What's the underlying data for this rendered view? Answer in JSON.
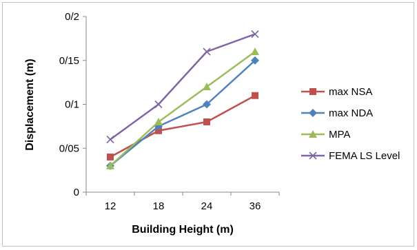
{
  "chart_data": {
    "type": "line",
    "title": "",
    "xlabel": "Building Height (m)",
    "ylabel": "Displacement (m)",
    "categories": [
      "12",
      "18",
      "24",
      "36"
    ],
    "ylim": [
      0,
      0.2
    ],
    "yticks": [
      0,
      0.05,
      0.1,
      0.15,
      0.2
    ],
    "ytick_labels": [
      "0",
      "0/05",
      "0/1",
      "0/15",
      "0/2"
    ],
    "grid": false,
    "legend_position": "right",
    "series": [
      {
        "name": "max NSA",
        "color": "#c0504d",
        "marker": "square",
        "values": [
          0.04,
          0.07,
          0.08,
          0.11
        ]
      },
      {
        "name": "max NDA",
        "color": "#4f81bd",
        "marker": "diamond",
        "values": [
          0.03,
          0.075,
          0.1,
          0.15
        ]
      },
      {
        "name": "MPA",
        "color": "#9bbb59",
        "marker": "triangle",
        "values": [
          0.03,
          0.08,
          0.12,
          0.16
        ]
      },
      {
        "name": "FEMA LS Level",
        "color": "#8064a2",
        "marker": "x",
        "values": [
          0.06,
          0.1,
          0.16,
          0.18
        ]
      }
    ]
  }
}
